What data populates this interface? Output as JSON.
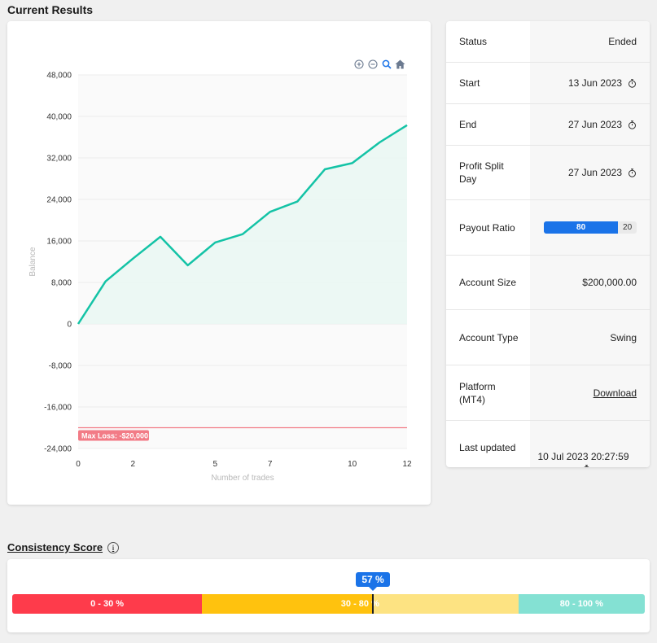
{
  "page_title": "Current Results",
  "chart_data": {
    "type": "area",
    "x": [
      0,
      1,
      2,
      3,
      4,
      5,
      6,
      7,
      8,
      9,
      10,
      11,
      12
    ],
    "y": [
      0,
      8200,
      12600,
      16800,
      11300,
      15700,
      17300,
      21600,
      23600,
      29800,
      31000,
      35000,
      38300
    ],
    "xlabel": "Number of trades",
    "ylabel": "Balance",
    "xlim": [
      0,
      12
    ],
    "ylim": [
      -24000,
      48000
    ],
    "y_ticks": [
      48000,
      40000,
      32000,
      24000,
      16000,
      8000,
      0,
      -8000,
      -16000,
      -24000
    ],
    "y_tick_labels": [
      "48,000",
      "40,000",
      "32,000",
      "24,000",
      "16,000",
      "8,000",
      "0",
      "-8,000",
      "-16,000",
      "-24,000"
    ],
    "x_ticks": [
      0,
      2,
      5,
      7,
      10,
      12
    ],
    "x_tick_labels": [
      "0",
      "2",
      "5",
      "7",
      "10",
      "12"
    ],
    "line_color": "#14c3a6",
    "fill_color": "#eaf7f3",
    "threshold": {
      "value": -20000,
      "label": "Max Loss: -$20,000",
      "color": "#f27b86"
    }
  },
  "toolbar": {
    "icons": [
      "zoom-in-icon",
      "zoom-out-icon",
      "magnify-icon",
      "home-icon"
    ]
  },
  "info": {
    "status_label": "Status",
    "status_value": "Ended",
    "start_label": "Start",
    "start_value": "13 Jun 2023",
    "end_label": "End",
    "end_value": "27 Jun 2023",
    "profit_split_label": "Profit Split Day",
    "profit_split_value": "27 Jun 2023",
    "payout_label": "Payout Ratio",
    "payout_trader": "80",
    "payout_firm": "20",
    "account_size_label": "Account Size",
    "account_size_value": "$200,000.00",
    "account_type_label": "Account Type",
    "account_type_value": "Swing",
    "platform_label": "Platform (MT4)",
    "platform_value": "Download",
    "last_updated_label": "Last updated",
    "last_updated_value": "10 Jul 2023 20:27:59"
  },
  "consistency": {
    "title": "Consistency Score",
    "info_icon": "i",
    "score": 57,
    "score_label": "57 %",
    "segments": [
      {
        "label": "0 - 30 %",
        "color": "#fe3b4b"
      },
      {
        "label": "30 - 80 %",
        "color": "#ffc20e"
      },
      {
        "label": "80 - 100 %",
        "color": "#84e1d3"
      }
    ],
    "mid_faded_color": "#fde382"
  }
}
